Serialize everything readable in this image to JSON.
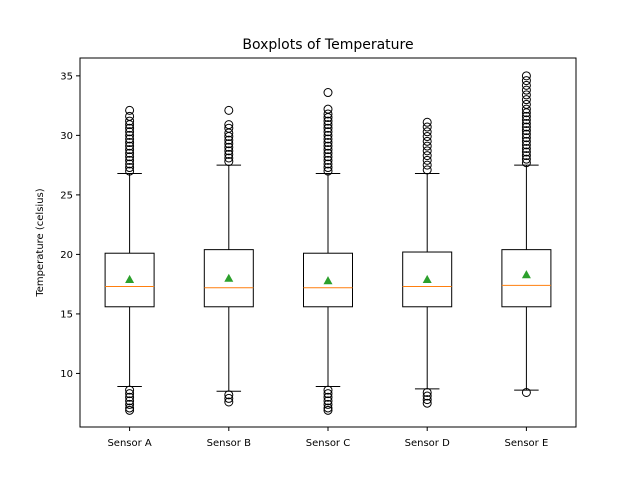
{
  "chart_data": {
    "type": "boxplot",
    "title": "Boxplots of Temperature",
    "ylabel": "Temperature (celsius)",
    "xlabel": "",
    "ylim": [
      5.5,
      36.5
    ],
    "yticks": [
      10,
      15,
      20,
      25,
      30,
      35
    ],
    "grid": false,
    "colors": {
      "box": "#000000",
      "median": "#ff7f0e",
      "mean": "#2ca02c",
      "flier": "#000000"
    },
    "categories": [
      "Sensor A",
      "Sensor B",
      "Sensor C",
      "Sensor D",
      "Sensor E"
    ],
    "boxes": [
      {
        "label": "Sensor A",
        "whisker_low": 8.9,
        "q1": 15.6,
        "median": 17.3,
        "q3": 20.1,
        "whisker_high": 26.8,
        "mean": 17.9,
        "outliers": [
          27.0,
          27.3,
          27.6,
          27.9,
          28.2,
          28.5,
          28.8,
          29.1,
          29.4,
          29.7,
          30.0,
          30.3,
          30.6,
          30.9,
          31.2,
          31.6,
          32.1,
          8.6,
          8.3,
          8.0,
          7.7,
          7.4,
          7.1,
          6.9
        ]
      },
      {
        "label": "Sensor B",
        "whisker_low": 8.5,
        "q1": 15.6,
        "median": 17.2,
        "q3": 20.4,
        "whisker_high": 27.5,
        "mean": 18.0,
        "outliers": [
          27.8,
          28.1,
          28.4,
          28.7,
          29.0,
          29.3,
          29.6,
          29.9,
          30.2,
          30.6,
          30.9,
          32.1,
          8.2,
          7.9,
          7.6
        ]
      },
      {
        "label": "Sensor C",
        "whisker_low": 8.9,
        "q1": 15.6,
        "median": 17.2,
        "q3": 20.1,
        "whisker_high": 26.8,
        "mean": 17.8,
        "outliers": [
          27.0,
          27.3,
          27.6,
          27.9,
          28.2,
          28.5,
          28.8,
          29.1,
          29.4,
          29.7,
          30.0,
          30.3,
          30.6,
          30.9,
          31.2,
          31.5,
          31.8,
          32.2,
          33.6,
          8.6,
          8.3,
          8.0,
          7.7,
          7.4,
          7.1,
          6.9
        ]
      },
      {
        "label": "Sensor D",
        "whisker_low": 8.7,
        "q1": 15.6,
        "median": 17.3,
        "q3": 20.2,
        "whisker_high": 26.8,
        "mean": 17.9,
        "outliers": [
          27.1,
          27.5,
          27.9,
          28.3,
          28.7,
          29.1,
          29.5,
          29.9,
          30.3,
          30.7,
          31.1,
          8.4,
          8.1,
          7.8,
          7.5
        ]
      },
      {
        "label": "Sensor E",
        "whisker_low": 8.6,
        "q1": 15.6,
        "median": 17.4,
        "q3": 20.4,
        "whisker_high": 27.5,
        "mean": 18.3,
        "outliers": [
          27.7,
          28.0,
          28.3,
          28.6,
          28.9,
          29.2,
          29.5,
          29.8,
          30.1,
          30.4,
          30.7,
          31.0,
          31.3,
          31.6,
          31.9,
          32.2,
          32.6,
          33.0,
          33.4,
          33.8,
          34.2,
          34.6,
          35.0,
          8.4
        ]
      }
    ]
  }
}
